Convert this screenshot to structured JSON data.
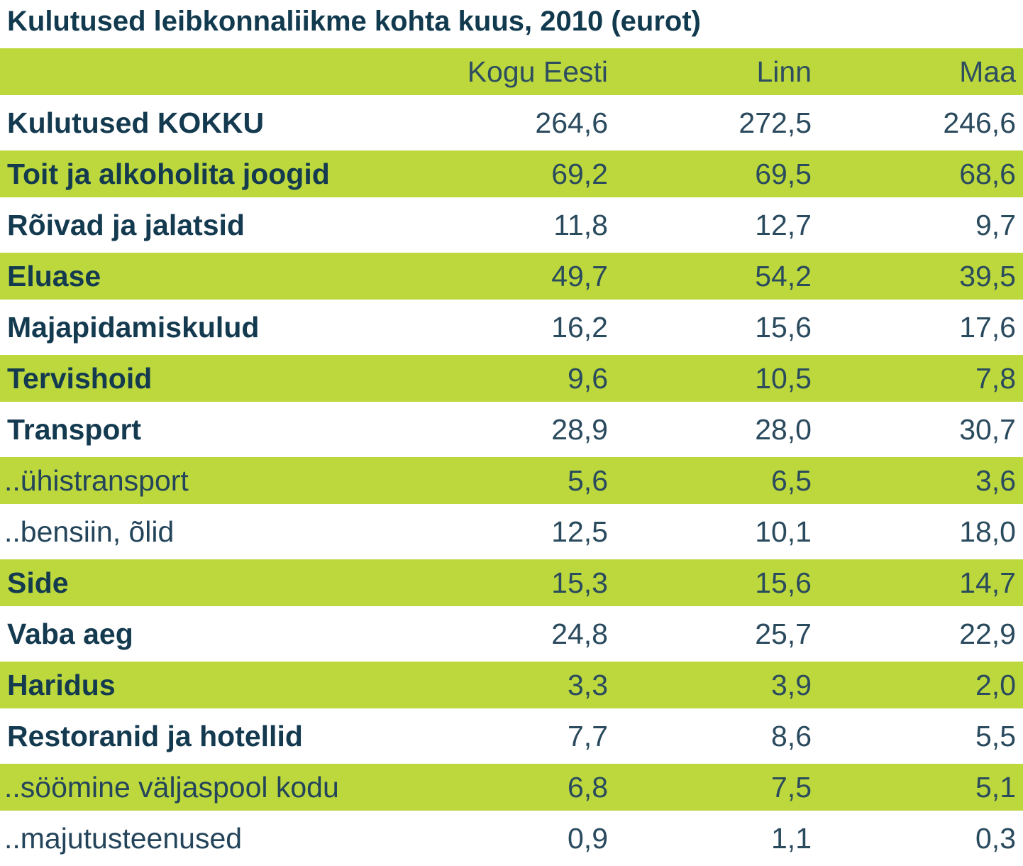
{
  "title": "Kulutused leibkonnaliikme kohta kuus, 2010 (eurot)",
  "columns": [
    "Kogu Eesti",
    "Linn",
    "Maa"
  ],
  "rows": [
    {
      "label": "Kulutused KOKKU",
      "values": [
        "264,6",
        "272,5",
        "246,6"
      ],
      "bold": true
    },
    {
      "label": "Toit ja alkoholita joogid",
      "values": [
        "69,2",
        "69,5",
        "68,6"
      ],
      "bold": true
    },
    {
      "label": "Rõivad ja jalatsid",
      "values": [
        "11,8",
        "12,7",
        "9,7"
      ],
      "bold": true
    },
    {
      "label": "Eluase",
      "values": [
        "49,7",
        "54,2",
        "39,5"
      ],
      "bold": true
    },
    {
      "label": "Majapidamiskulud",
      "values": [
        "16,2",
        "15,6",
        "17,6"
      ],
      "bold": true
    },
    {
      "label": "Tervishoid",
      "values": [
        "9,6",
        "10,5",
        "7,8"
      ],
      "bold": true
    },
    {
      "label": "Transport",
      "values": [
        "28,9",
        "28,0",
        "30,7"
      ],
      "bold": true
    },
    {
      "label": "..ühistransport",
      "values": [
        "5,6",
        "6,5",
        "3,6"
      ],
      "bold": false
    },
    {
      "label": "..bensiin, õlid",
      "values": [
        "12,5",
        "10,1",
        "18,0"
      ],
      "bold": false
    },
    {
      "label": "Side",
      "values": [
        "15,3",
        "15,6",
        "14,7"
      ],
      "bold": true
    },
    {
      "label": "Vaba aeg",
      "values": [
        "24,8",
        "25,7",
        "22,9"
      ],
      "bold": true
    },
    {
      "label": "Haridus",
      "values": [
        "3,3",
        "3,9",
        "2,0"
      ],
      "bold": true
    },
    {
      "label": "Restoranid ja hotellid",
      "values": [
        "7,7",
        "8,6",
        "5,5"
      ],
      "bold": true
    },
    {
      "label": "..söömine väljaspool kodu",
      "values": [
        "6,8",
        "7,5",
        "5,1"
      ],
      "bold": false
    },
    {
      "label": "..majutusteenused",
      "values": [
        "0,9",
        "1,1",
        "0,3"
      ],
      "bold": false
    }
  ],
  "colors": {
    "stripe": "#bcd83d",
    "text": "#143a50"
  }
}
